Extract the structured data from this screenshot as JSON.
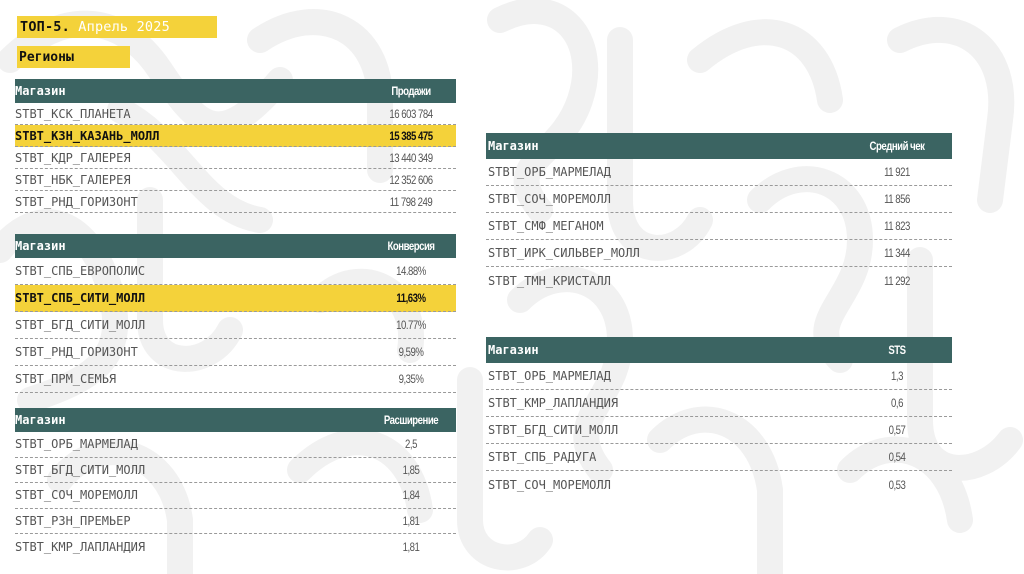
{
  "title": {
    "prefix": "ТОП-5.",
    "period": "Апрель 2025"
  },
  "subtitle": "Регионы",
  "tables": {
    "sales": {
      "col1": "Магазин",
      "col2": "Продажи",
      "rows": [
        {
          "store": "STBT_КСК_ПЛАНЕТА",
          "value": "16 603 784"
        },
        {
          "store": "STBT_КЗН_КАЗАНЬ_МОЛЛ",
          "value": "15 385 475"
        },
        {
          "store": "STBT_КДР_ГАЛЕРЕЯ",
          "value": "13 440 349"
        },
        {
          "store": "STBT_НБК_ГАЛЕРЕЯ",
          "value": "12 352 606"
        },
        {
          "store": "STBT_РНД_ГОРИЗОНТ",
          "value": "11 798 249"
        }
      ]
    },
    "conversion": {
      "col1": "Магазин",
      "col2": "Конверсия",
      "rows": [
        {
          "store": "STBT_СПБ_ЕВРОПОЛИС",
          "value": "14.88%"
        },
        {
          "store": "STBT_СПБ_СИТИ_МОЛЛ",
          "value": "11,63%"
        },
        {
          "store": "STBT_БГД_СИТИ_МОЛЛ",
          "value": "10.77%"
        },
        {
          "store": "STBT_РНД_ГОРИЗОНТ",
          "value": "9,59%"
        },
        {
          "store": "STBT_ПРМ_СЕМЬЯ",
          "value": "9,35%"
        }
      ]
    },
    "expansion": {
      "col1": "Магазин",
      "col2": "Расширение",
      "rows": [
        {
          "store": "STBT_ОРБ_МАРМЕЛАД",
          "value": "2,5"
        },
        {
          "store": "STBT_БГД_СИТИ_МОЛЛ",
          "value": "1,85"
        },
        {
          "store": "STBT_СОЧ_МОРЕМОЛЛ",
          "value": "1,84"
        },
        {
          "store": "STBT_РЗН_ПРЕМЬЕР",
          "value": "1,81"
        },
        {
          "store": "STBT_КМР_ЛАПЛАНДИЯ",
          "value": "1,81"
        }
      ]
    },
    "avg_check": {
      "col1": "Магазин",
      "col2": "Средний чек",
      "rows": [
        {
          "store": "STBT_ОРБ_МАРМЕЛАД",
          "value": "11 921"
        },
        {
          "store": "STBT_СОЧ_МОРЕМОЛЛ",
          "value": "11 856"
        },
        {
          "store": "STBT_СМФ_МЕГАНОМ",
          "value": "11 823"
        },
        {
          "store": "STBT_ИРК_СИЛЬВЕР_МОЛЛ",
          "value": "11 344"
        },
        {
          "store": "STBT_ТМН_КРИСТАЛЛ",
          "value": "11 292"
        }
      ]
    },
    "sts": {
      "col1": "Магазин",
      "col2": "STS",
      "rows": [
        {
          "store": "STBT_ОРБ_МАРМЕЛАД",
          "value": "1,3"
        },
        {
          "store": "STBT_КМР_ЛАПЛАНДИЯ",
          "value": "0,6"
        },
        {
          "store": "STBT_БГД_СИТИ_МОЛЛ",
          "value": "0,57"
        },
        {
          "store": "STBT_СПБ_РАДУГА",
          "value": "0,54"
        },
        {
          "store": "STBT_СОЧ_МОРЕМОЛЛ",
          "value": "0,53"
        }
      ]
    }
  },
  "highlight_color": "#f4d23a",
  "header_color": "#3b6462"
}
